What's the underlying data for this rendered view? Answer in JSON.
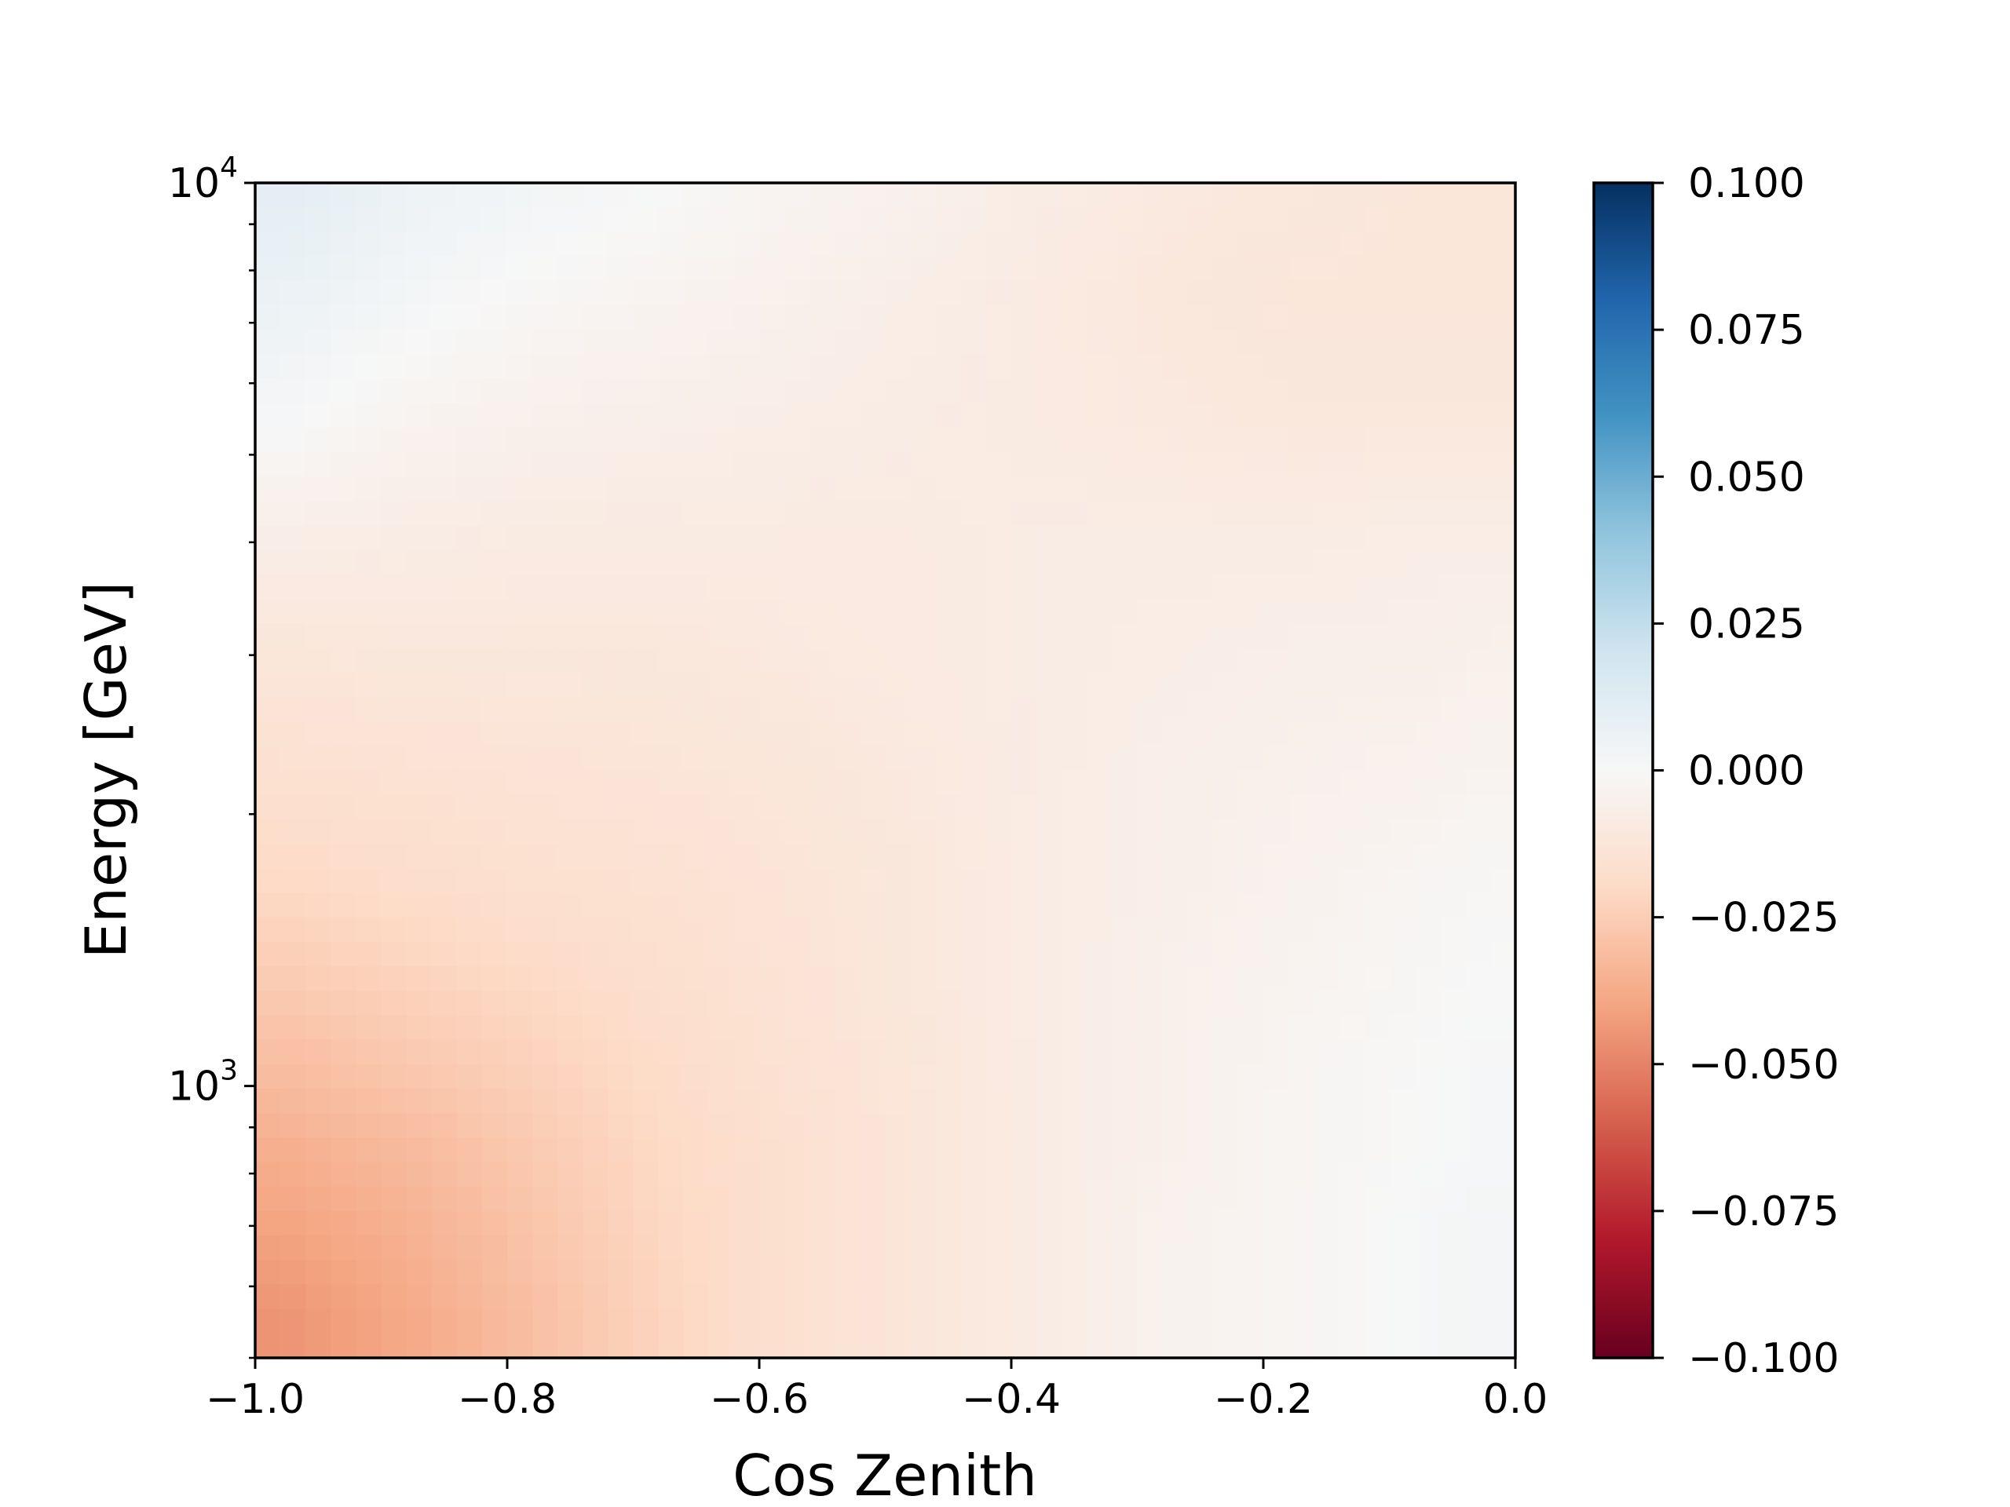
{
  "chart_data": {
    "type": "heatmap",
    "xlabel": "Cos Zenith",
    "ylabel": "Energy [GeV]",
    "x_range": [
      -1.0,
      0.0
    ],
    "y_range": [
      500,
      10000
    ],
    "y_scale": "log",
    "x_ticks": [
      {
        "value": -1.0,
        "label": "−1.0"
      },
      {
        "value": -0.8,
        "label": "−0.8"
      },
      {
        "value": -0.6,
        "label": "−0.6"
      },
      {
        "value": -0.4,
        "label": "−0.4"
      },
      {
        "value": -0.2,
        "label": "−0.2"
      },
      {
        "value": 0.0,
        "label": "0.0"
      }
    ],
    "y_ticks": [
      {
        "value": 1000,
        "base": "10",
        "exp": "3"
      },
      {
        "value": 10000,
        "base": "10",
        "exp": "4"
      }
    ],
    "colorbar": {
      "colormap": "RdBu",
      "range": [
        -0.1,
        0.1
      ],
      "low_color": "#67001f",
      "high_color": "#053061",
      "ticks": [
        {
          "value": 0.1,
          "label": "0.100"
        },
        {
          "value": 0.075,
          "label": "0.075"
        },
        {
          "value": 0.05,
          "label": "0.050"
        },
        {
          "value": 0.025,
          "label": "0.025"
        },
        {
          "value": 0.0,
          "label": "0.000"
        },
        {
          "value": -0.025,
          "label": "−0.025"
        },
        {
          "value": -0.05,
          "label": "−0.050"
        },
        {
          "value": -0.075,
          "label": "−0.075"
        },
        {
          "value": -0.1,
          "label": "−0.100"
        }
      ]
    },
    "x_centers": [
      -0.975,
      -0.875,
      -0.775,
      -0.675,
      -0.575,
      -0.475,
      -0.375,
      -0.275,
      -0.175,
      -0.075,
      -0.025
    ],
    "y_centers": [
      550,
      700,
      850,
      1000,
      1300,
      1700,
      2200,
      3000,
      4000,
      5500,
      7500,
      9500
    ],
    "values": [
      [
        -0.045,
        -0.038,
        -0.03,
        -0.022,
        -0.016,
        -0.012,
        -0.008,
        -0.004,
        -0.002,
        0.001,
        0.002
      ],
      [
        -0.04,
        -0.035,
        -0.028,
        -0.021,
        -0.016,
        -0.012,
        -0.008,
        -0.004,
        -0.002,
        0.001,
        0.002
      ],
      [
        -0.036,
        -0.032,
        -0.026,
        -0.02,
        -0.016,
        -0.012,
        -0.008,
        -0.005,
        -0.002,
        0.0,
        0.001
      ],
      [
        -0.032,
        -0.028,
        -0.024,
        -0.019,
        -0.015,
        -0.012,
        -0.008,
        -0.005,
        -0.002,
        0.0,
        0.001
      ],
      [
        -0.026,
        -0.023,
        -0.02,
        -0.017,
        -0.014,
        -0.011,
        -0.008,
        -0.005,
        -0.003,
        -0.001,
        0.0
      ],
      [
        -0.02,
        -0.018,
        -0.016,
        -0.015,
        -0.013,
        -0.011,
        -0.008,
        -0.006,
        -0.004,
        -0.002,
        -0.001
      ],
      [
        -0.016,
        -0.015,
        -0.014,
        -0.013,
        -0.012,
        -0.01,
        -0.008,
        -0.006,
        -0.005,
        -0.004,
        -0.003
      ],
      [
        -0.012,
        -0.011,
        -0.011,
        -0.011,
        -0.01,
        -0.009,
        -0.008,
        -0.007,
        -0.006,
        -0.006,
        -0.005
      ],
      [
        -0.007,
        -0.008,
        -0.009,
        -0.009,
        -0.009,
        -0.009,
        -0.008,
        -0.008,
        -0.008,
        -0.007,
        -0.007
      ],
      [
        0.001,
        -0.003,
        -0.005,
        -0.006,
        -0.007,
        -0.008,
        -0.009,
        -0.01,
        -0.011,
        -0.011,
        -0.011
      ],
      [
        0.006,
        0.002,
        -0.001,
        -0.003,
        -0.005,
        -0.007,
        -0.009,
        -0.011,
        -0.012,
        -0.012,
        -0.012
      ],
      [
        0.01,
        0.005,
        0.002,
        0.0,
        -0.003,
        -0.005,
        -0.008,
        -0.01,
        -0.011,
        -0.012,
        -0.012
      ]
    ]
  }
}
